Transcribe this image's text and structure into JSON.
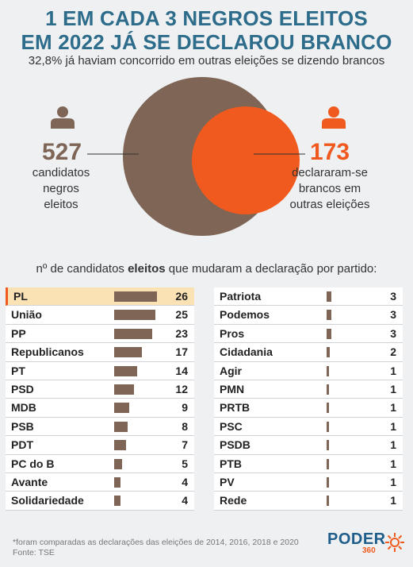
{
  "header": {
    "title_line1": "1 EM CADA 3 NEGROS ELEITOS",
    "title_line2": "EM 2022 JÁ SE DECLAROU BRANCO",
    "subtitle": "32,8% já haviam concorrido em outras eleições se dizendo brancos"
  },
  "venn": {
    "total_value": "527",
    "total_caption": [
      "candidatos",
      "negros",
      "eleitos"
    ],
    "subset_value": "173",
    "subset_caption": [
      "declararam-se",
      "brancos em",
      "outras eleições"
    ],
    "total_color": "#7e6556",
    "subset_color": "#f05a1e"
  },
  "section": {
    "heading_pre": "nº de candidatos ",
    "heading_bold": "eleitos",
    "heading_post": " que mudaram a declaração por partido:"
  },
  "chart_data": {
    "type": "bar",
    "title": "nº de candidatos eleitos que mudaram a declaração por partido:",
    "bar_color": "#7e6556",
    "highlight_category": "PL",
    "categories": [
      "PL",
      "União",
      "PP",
      "Republicanos",
      "PT",
      "PSD",
      "MDB",
      "PSB",
      "PDT",
      "PC do B",
      "Avante",
      "Solidariedade",
      "Patriota",
      "Podemos",
      "Pros",
      "Cidadania",
      "Agir",
      "PMN",
      "PRTB",
      "PSC",
      "PSDB",
      "PTB",
      "PV",
      "Rede"
    ],
    "values": [
      26,
      25,
      23,
      17,
      14,
      12,
      9,
      8,
      7,
      5,
      4,
      4,
      3,
      3,
      3,
      2,
      1,
      1,
      1,
      1,
      1,
      1,
      1,
      1
    ]
  },
  "footer": {
    "note": "*foram comparadas as declarações das eleições de 2014, 2016, 2018 e 2020",
    "source": "Fonte: TSE"
  },
  "logo": {
    "name": "PODER",
    "number": "360"
  }
}
